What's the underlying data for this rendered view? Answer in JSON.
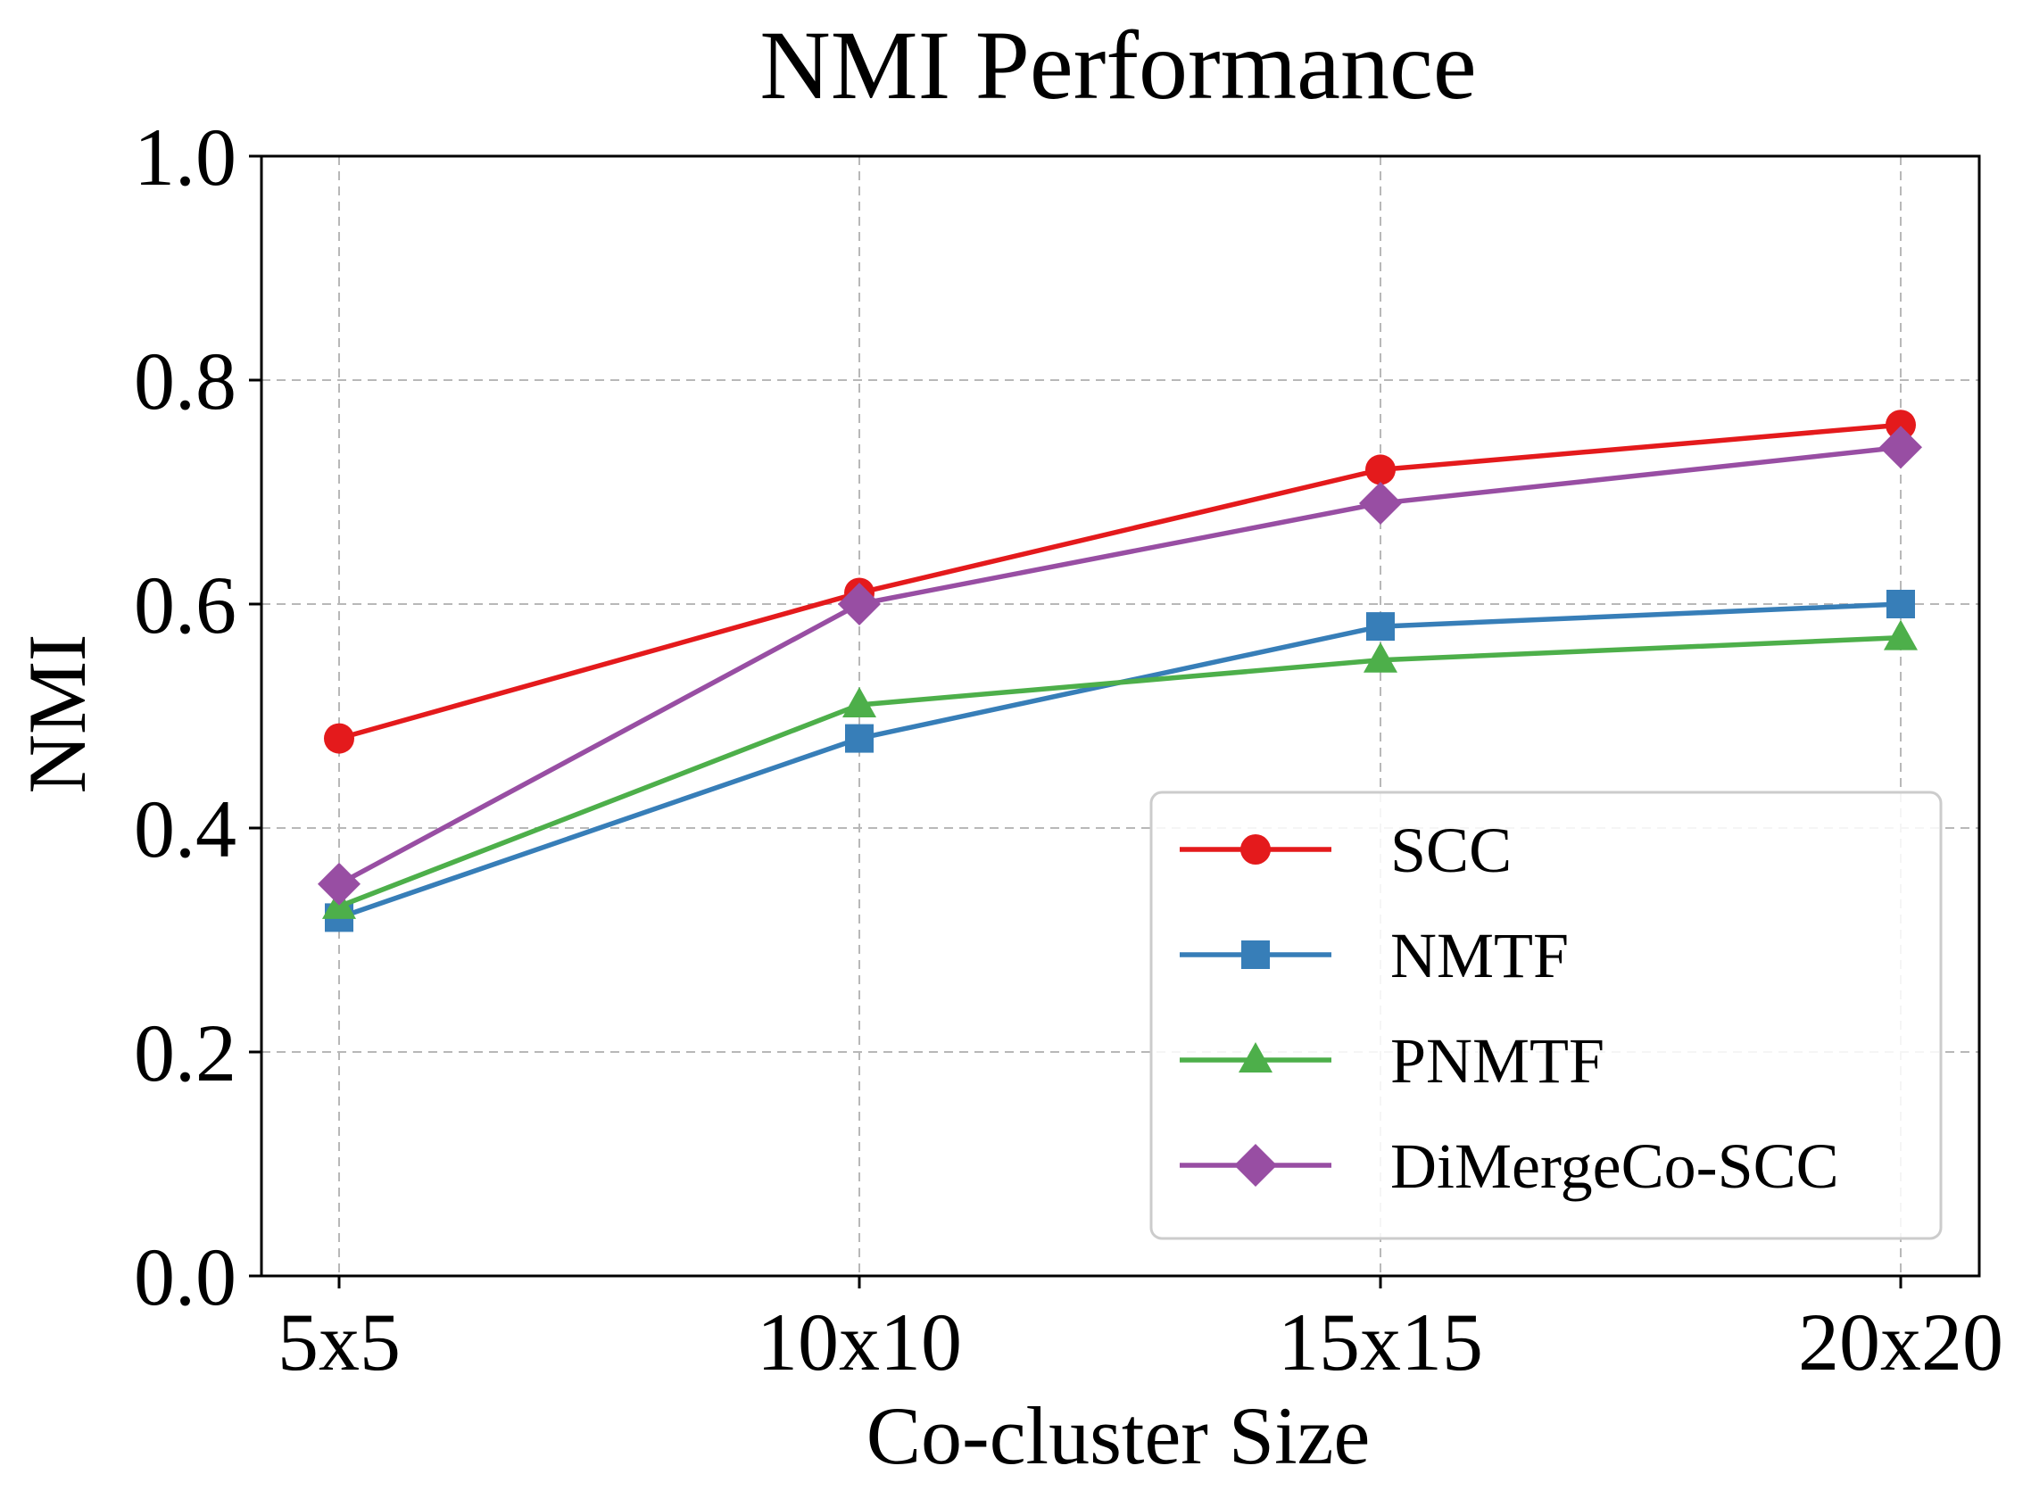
{
  "chart_data": {
    "type": "line",
    "title": "NMI Performance",
    "xlabel": "Co-cluster Size",
    "ylabel": "NMI",
    "categories": [
      "5x5",
      "10x10",
      "15x15",
      "20x20"
    ],
    "ylim": [
      0.0,
      1.0
    ],
    "yticks": [
      "0.0",
      "0.2",
      "0.4",
      "0.6",
      "0.8",
      "1.0"
    ],
    "grid": true,
    "legend_position": "bottom-right",
    "series": [
      {
        "name": "SCC",
        "values": [
          0.48,
          0.61,
          0.72,
          0.76
        ],
        "color": "#e41a1c",
        "marker": "circle"
      },
      {
        "name": "NMTF",
        "values": [
          0.32,
          0.48,
          0.58,
          0.6
        ],
        "color": "#377eb8",
        "marker": "square"
      },
      {
        "name": "PNMTF",
        "values": [
          0.33,
          0.51,
          0.55,
          0.57
        ],
        "color": "#4daf4a",
        "marker": "triangle"
      },
      {
        "name": "DiMergeCo-SCC",
        "values": [
          0.35,
          0.6,
          0.69,
          0.74
        ],
        "color": "#984ea3",
        "marker": "diamond"
      }
    ]
  }
}
